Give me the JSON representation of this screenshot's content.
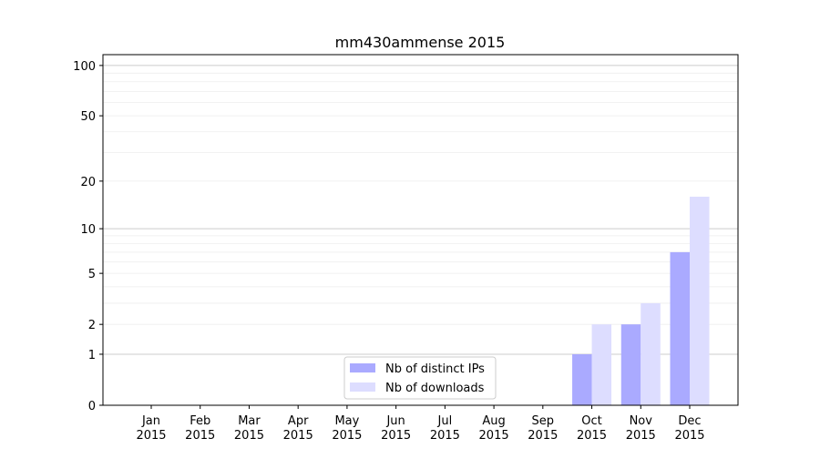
{
  "chart_data": {
    "type": "bar",
    "title": "mm430ammense 2015",
    "xlabel": "",
    "ylabel": "",
    "yscale": "log(1+y)",
    "ylim": [
      0,
      116
    ],
    "yticks": [
      0,
      1,
      2,
      5,
      10,
      20,
      50,
      100
    ],
    "grid": true,
    "legend_position": "bottom-center",
    "categories": [
      "Jan\n2015",
      "Feb\n2015",
      "Mar\n2015",
      "Apr\n2015",
      "May\n2015",
      "Jun\n2015",
      "Jul\n2015",
      "Aug\n2015",
      "Sep\n2015",
      "Oct\n2015",
      "Nov\n2015",
      "Dec\n2015"
    ],
    "series": [
      {
        "name": "Nb of distinct IPs",
        "color": "#aaaaff",
        "values": [
          0,
          0,
          0,
          0,
          0,
          0,
          0,
          0,
          0,
          1,
          2,
          7
        ]
      },
      {
        "name": "Nb of downloads",
        "color": "#ddddff",
        "values": [
          0,
          0,
          0,
          0,
          0,
          0,
          0,
          0,
          0,
          2,
          3,
          16
        ]
      }
    ]
  }
}
